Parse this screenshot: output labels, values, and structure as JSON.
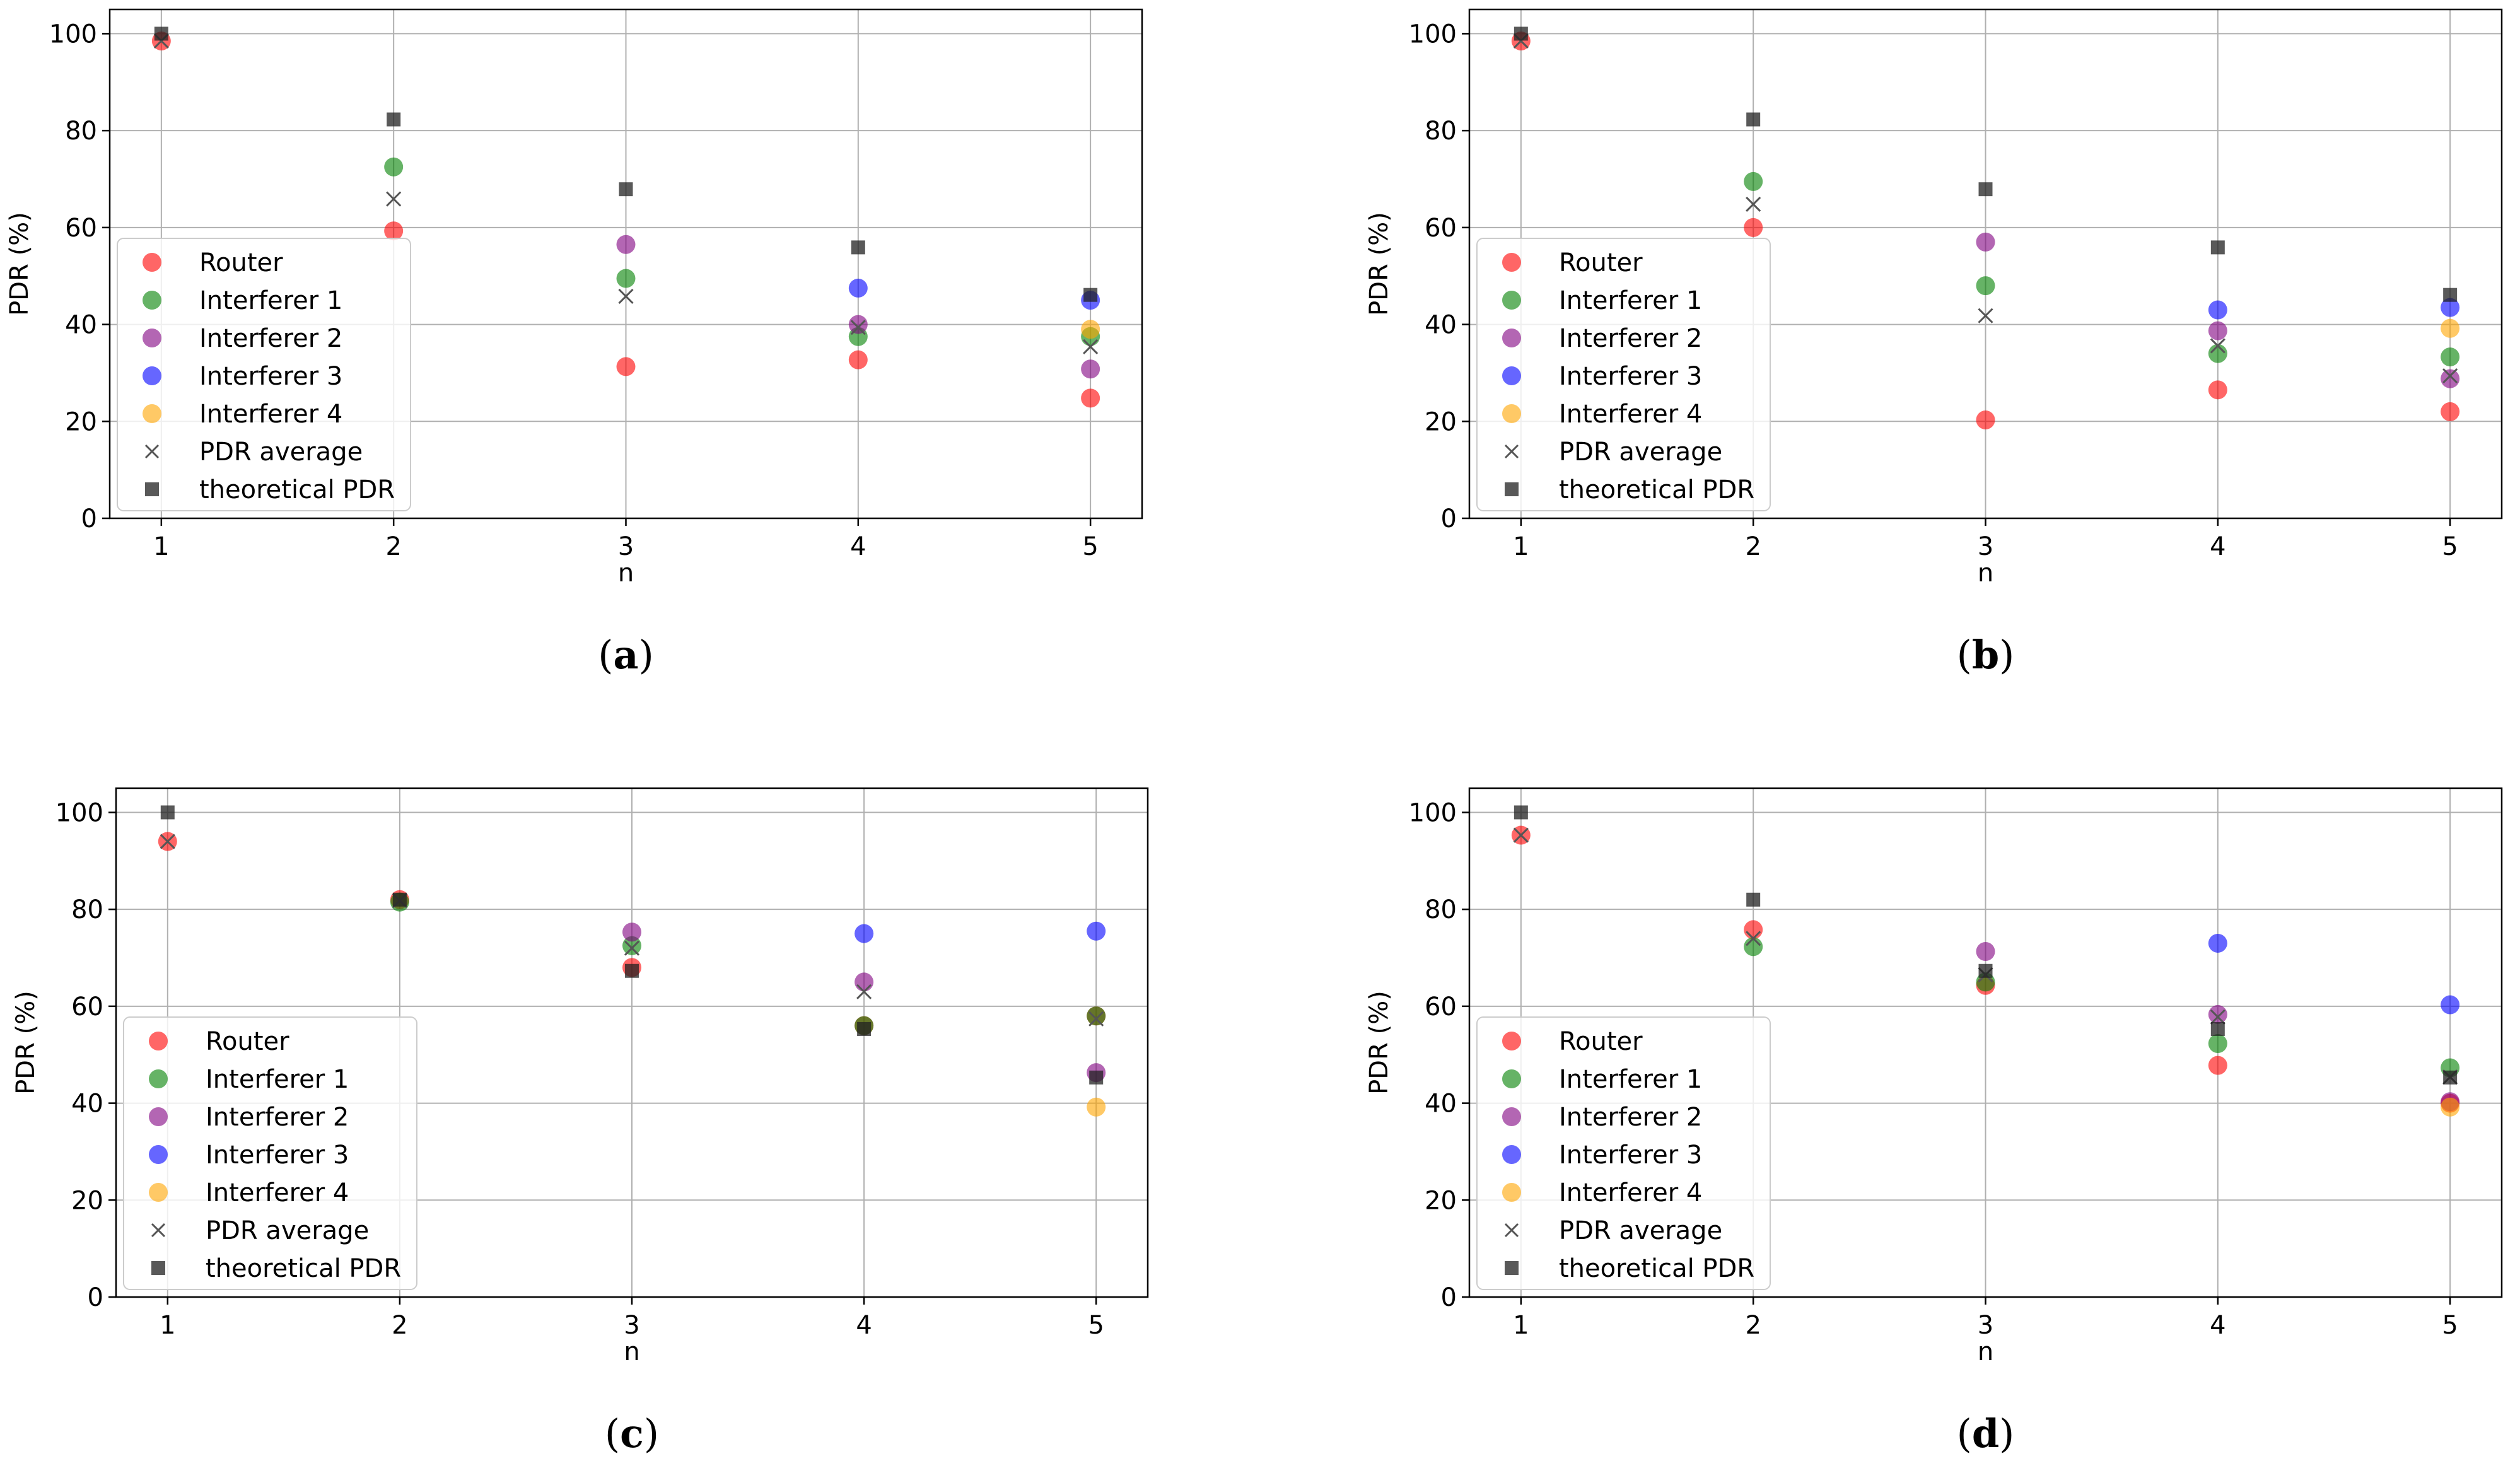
{
  "colors": {
    "Router": "#ff0000",
    "Interferer 1": "#008000",
    "Interferer 2": "#800080",
    "Interferer 3": "#0000ff",
    "Interferer 4": "#ffa500",
    "PDR average": "#555555",
    "theoretical PDR": "#222222"
  },
  "legend_labels": [
    "Router",
    "Interferer 1",
    "Interferer 2",
    "Interferer 3",
    "Interferer 4",
    "PDR average",
    "theoretical PDR"
  ],
  "chart_data": [
    {
      "type": "scatter",
      "caption_letter": "a",
      "caption_open": "(",
      "caption_close": ")",
      "xlabel": "n",
      "ylabel": "PDR (%)",
      "x": [
        1,
        2,
        3,
        4,
        5
      ],
      "xticks": [
        "1",
        "2",
        "3",
        "4",
        "5"
      ],
      "yticks": [
        "0",
        "20",
        "40",
        "60",
        "80",
        "100"
      ],
      "ylim": [
        0,
        105
      ],
      "grid": true,
      "legend_position": "lower-left",
      "series": [
        {
          "name": "Router",
          "values": [
            98.5,
            59.3,
            31.3,
            32.7,
            24.8
          ]
        },
        {
          "name": "Interferer 1",
          "values": [
            null,
            72.5,
            49.5,
            37.5,
            37.5
          ]
        },
        {
          "name": "Interferer 2",
          "values": [
            null,
            null,
            56.5,
            40.0,
            30.8
          ]
        },
        {
          "name": "Interferer 3",
          "values": [
            null,
            null,
            null,
            47.5,
            45.0
          ]
        },
        {
          "name": "Interferer 4",
          "values": [
            null,
            null,
            null,
            null,
            39.0
          ]
        },
        {
          "name": "PDR average",
          "values": [
            98.5,
            65.9,
            45.8,
            39.4,
            35.4
          ]
        },
        {
          "name": "theoretical PDR",
          "values": [
            100,
            82.3,
            67.9,
            55.9,
            46.1
          ]
        }
      ]
    },
    {
      "type": "scatter",
      "caption_letter": "b",
      "caption_open": "(",
      "caption_close": ")",
      "xlabel": "n",
      "ylabel": "PDR (%)",
      "x": [
        1,
        2,
        3,
        4,
        5
      ],
      "xticks": [
        "1",
        "2",
        "3",
        "4",
        "5"
      ],
      "yticks": [
        "0",
        "20",
        "40",
        "60",
        "80",
        "100"
      ],
      "ylim": [
        0,
        105
      ],
      "grid": true,
      "legend_position": "lower-left",
      "series": [
        {
          "name": "Router",
          "values": [
            98.5,
            60.0,
            20.3,
            26.5,
            22.0
          ]
        },
        {
          "name": "Interferer 1",
          "values": [
            null,
            69.5,
            48.0,
            34.0,
            33.3
          ]
        },
        {
          "name": "Interferer 2",
          "values": [
            null,
            null,
            57.0,
            38.7,
            28.8
          ]
        },
        {
          "name": "Interferer 3",
          "values": [
            null,
            null,
            null,
            43.0,
            43.5
          ]
        },
        {
          "name": "Interferer 4",
          "values": [
            null,
            null,
            null,
            null,
            39.2
          ]
        },
        {
          "name": "PDR average",
          "values": [
            98.5,
            64.8,
            41.8,
            35.6,
            29.4
          ]
        },
        {
          "name": "theoretical PDR",
          "values": [
            100,
            82.3,
            67.9,
            55.9,
            46.1
          ]
        }
      ]
    },
    {
      "type": "scatter",
      "caption_letter": "c",
      "caption_open": "(",
      "caption_close": ")",
      "xlabel": "n",
      "ylabel": "PDR (%)",
      "x": [
        1,
        2,
        3,
        4,
        5
      ],
      "xticks": [
        "1",
        "2",
        "3",
        "4",
        "5"
      ],
      "yticks": [
        "0",
        "20",
        "40",
        "60",
        "80",
        "100"
      ],
      "ylim": [
        0,
        105
      ],
      "grid": true,
      "legend_position": "lower-left",
      "series": [
        {
          "name": "Router",
          "values": [
            94.0,
            82.0,
            68.0,
            56.0,
            58.0
          ]
        },
        {
          "name": "Interferer 1",
          "values": [
            null,
            81.5,
            72.5,
            56.0,
            58.0
          ]
        },
        {
          "name": "Interferer 2",
          "values": [
            null,
            null,
            75.3,
            65.0,
            46.3
          ]
        },
        {
          "name": "Interferer 3",
          "values": [
            null,
            null,
            null,
            75.0,
            75.5
          ]
        },
        {
          "name": "Interferer 4",
          "values": [
            null,
            null,
            null,
            null,
            39.2
          ]
        },
        {
          "name": "PDR average",
          "values": [
            94.0,
            81.8,
            72.0,
            63.0,
            57.4
          ]
        },
        {
          "name": "theoretical PDR",
          "values": [
            100,
            82.0,
            67.3,
            55.3,
            45.3
          ]
        }
      ]
    },
    {
      "type": "scatter",
      "caption_letter": "d",
      "caption_open": "(",
      "caption_close": ")",
      "xlabel": "n",
      "ylabel": "PDR (%)",
      "x": [
        1,
        2,
        3,
        4,
        5
      ],
      "xticks": [
        "1",
        "2",
        "3",
        "4",
        "5"
      ],
      "yticks": [
        "0",
        "20",
        "40",
        "60",
        "80",
        "100"
      ],
      "ylim": [
        0,
        105
      ],
      "grid": true,
      "legend_position": "lower-left",
      "series": [
        {
          "name": "Router",
          "values": [
            95.3,
            75.8,
            64.3,
            47.8,
            40.0
          ]
        },
        {
          "name": "Interferer 1",
          "values": [
            null,
            72.3,
            65.0,
            52.3,
            47.3
          ]
        },
        {
          "name": "Interferer 2",
          "values": [
            null,
            null,
            71.3,
            58.3,
            40.3
          ]
        },
        {
          "name": "Interferer 3",
          "values": [
            null,
            null,
            null,
            73.0,
            60.3
          ]
        },
        {
          "name": "Interferer 4",
          "values": [
            null,
            null,
            null,
            null,
            39.2
          ]
        },
        {
          "name": "PDR average",
          "values": [
            95.3,
            74.0,
            66.5,
            57.8,
            45.4
          ]
        },
        {
          "name": "theoretical PDR",
          "values": [
            100,
            82.0,
            67.3,
            55.3,
            45.3
          ]
        }
      ]
    }
  ]
}
